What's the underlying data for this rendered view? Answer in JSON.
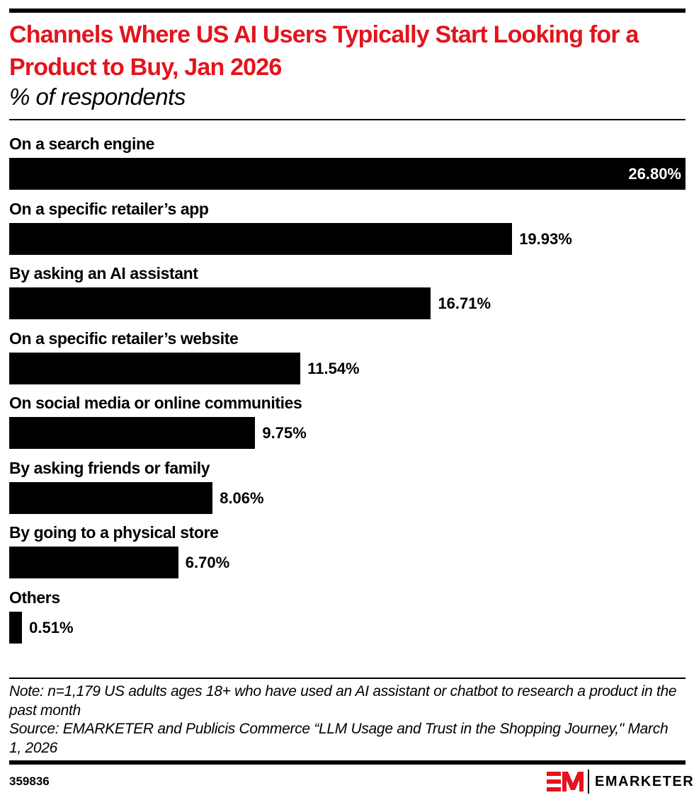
{
  "header": {
    "title": "Channels Where US AI Users Typically Start Looking for a Product to Buy, Jan 2026",
    "subtitle": "% of respondents"
  },
  "chart_data": {
    "type": "bar",
    "orientation": "horizontal",
    "title": "Channels Where US AI Users Typically Start Looking for a Product to Buy, Jan 2026",
    "subtitle": "% of respondents",
    "categories": [
      "On a search engine",
      "On a specific retailer’s app",
      "By asking an AI assistant",
      "On a specific retailer’s website",
      "On social media or online communities",
      "By asking friends or family",
      "By going to a physical store",
      "Others"
    ],
    "values": [
      26.8,
      19.93,
      16.71,
      11.54,
      9.75,
      8.06,
      6.7,
      0.51
    ],
    "value_labels": [
      "26.80%",
      "19.93%",
      "16.71%",
      "11.54%",
      "9.75%",
      "8.06%",
      "6.70%",
      "0.51%"
    ],
    "xlim": [
      0,
      26.8
    ],
    "xlabel": "",
    "ylabel": "",
    "grid": false,
    "bar_color": "#000000"
  },
  "footer": {
    "note": "Note: n=1,179 US adults ages 18+ who have used an AI assistant or chatbot to research a product in the past month",
    "source": "Source: EMARKETER and Publicis Commerce “LLM Usage and Trust in the Shopping Journey,\" March 1, 2026",
    "chart_id": "359836",
    "brand": "EMARKETER"
  },
  "colors": {
    "title": "#e3141d",
    "logo": "#e3141d"
  }
}
